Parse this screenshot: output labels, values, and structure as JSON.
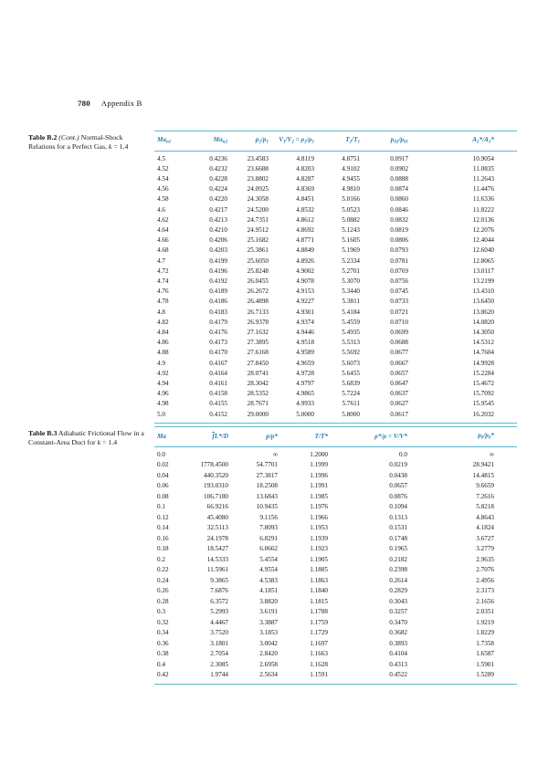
{
  "page": {
    "number": "780",
    "section": "Appendix B"
  },
  "colors": {
    "header_text": "#1f7da8",
    "rule": "#5ab8d0",
    "body_text": "#161616",
    "background": "#ffffff"
  },
  "tableB2": {
    "caption_label": "Table B.2",
    "caption_cont": "(Cont.)",
    "caption_text_html": "Normal-Shock Relations for a Perfect Gas, <i>k</i> = 1.4",
    "headers_html": [
      "Ma<sub>n1</sub>",
      "Ma<sub>n2</sub>",
      "p<sub>2</sub>/p<sub>1</sub>",
      "V<sub>1</sub>/V<sub>2</sub> = ρ<sub>2</sub>/ρ<sub>1</sub>",
      "T<sub>2</sub>/T<sub>1</sub>",
      "p<sub>02</sub>/p<sub>01</sub>",
      "A<sub>2</sub>*/A<sub>1</sub>*"
    ],
    "rows": [
      [
        "4.5",
        "0.4236",
        "23.4583",
        "4.8119",
        "4.8751",
        "0.0917",
        "10.9054"
      ],
      [
        "4.52",
        "0.4232",
        "23.6688",
        "4.8203",
        "4.9102",
        "0.0902",
        "11.0835"
      ],
      [
        "4.54",
        "0.4228",
        "23.8802",
        "4.8287",
        "4.9455",
        "0.0888",
        "11.2643"
      ],
      [
        "4.56",
        "0.4224",
        "24.0925",
        "4.8369",
        "4.9810",
        "0.0874",
        "11.4476"
      ],
      [
        "4.58",
        "0.4220",
        "24.3058",
        "4.8451",
        "5.0166",
        "0.0860",
        "11.6336"
      ],
      [
        "4.6",
        "0.4217",
        "24.5200",
        "4.8532",
        "5.0523",
        "0.0846",
        "11.8222"
      ],
      [
        "4.62",
        "0.4213",
        "24.7351",
        "4.8612",
        "5.0882",
        "0.0832",
        "12.0136"
      ],
      [
        "4.64",
        "0.4210",
        "24.9512",
        "4.8692",
        "5.1243",
        "0.0819",
        "12.2076"
      ],
      [
        "4.66",
        "0.4206",
        "25.1682",
        "4.8771",
        "5.1605",
        "0.0806",
        "12.4044"
      ],
      [
        "4.68",
        "0.4203",
        "25.3861",
        "4.8849",
        "5.1969",
        "0.0793",
        "12.6040"
      ],
      [
        "4.7",
        "0.4199",
        "25.6050",
        "4.8926",
        "5.2334",
        "0.0781",
        "12.8065"
      ],
      [
        "4.72",
        "0.4196",
        "25.8248",
        "4.9002",
        "5.2701",
        "0.0769",
        "13.0117"
      ],
      [
        "4.74",
        "0.4192",
        "26.0455",
        "4.9078",
        "5.3070",
        "0.0756",
        "13.2199"
      ],
      [
        "4.76",
        "0.4189",
        "26.2672",
        "4.9153",
        "5.3440",
        "0.0745",
        "13.4310"
      ],
      [
        "4.78",
        "0.4186",
        "26.4898",
        "4.9227",
        "5.3811",
        "0.0733",
        "13.6450"
      ],
      [
        "4.8",
        "0.4183",
        "26.7133",
        "4.9301",
        "5.4184",
        "0.0721",
        "13.8620"
      ],
      [
        "4.82",
        "0.4179",
        "26.9378",
        "4.9374",
        "5.4559",
        "0.0710",
        "14.0820"
      ],
      [
        "4.84",
        "0.4176",
        "27.1632",
        "4.9446",
        "5.4935",
        "0.0699",
        "14.3050"
      ],
      [
        "4.86",
        "0.4173",
        "27.3895",
        "4.9518",
        "5.5313",
        "0.0688",
        "14.5312"
      ],
      [
        "4.88",
        "0.4170",
        "27.6168",
        "4.9589",
        "5.5692",
        "0.0677",
        "14.7604"
      ],
      [
        "4.9",
        "0.4167",
        "27.8450",
        "4.9659",
        "5.6073",
        "0.0667",
        "14.9928"
      ],
      [
        "4.92",
        "0.4164",
        "28.0741",
        "4.9728",
        "5.6455",
        "0.0657",
        "15.2284"
      ],
      [
        "4.94",
        "0.4161",
        "28.3042",
        "4.9797",
        "5.6839",
        "0.0647",
        "15.4672"
      ],
      [
        "4.96",
        "0.4158",
        "28.5352",
        "4.9865",
        "5.7224",
        "0.0637",
        "15.7092"
      ],
      [
        "4.98",
        "0.4155",
        "28.7671",
        "4.9933",
        "5.7611",
        "0.0627",
        "15.9545"
      ],
      [
        "5.0",
        "0.4152",
        "29.0000",
        "5.0000",
        "5.8000",
        "0.0617",
        "16.2032"
      ]
    ]
  },
  "tableB3": {
    "caption_label": "Table B.3",
    "caption_text_html": "Adiabatic Frictional Flow in a Constant-Area Duct for <i>k</i> = 1.4",
    "headers_html": [
      "Ma",
      "<span class='ov'>f</span>L*/D",
      "p/p*",
      "T/T*",
      "ρ*/ρ = V/V*",
      "p<sub>0</sub>/p<sub>0</sub>*"
    ],
    "rows": [
      [
        "0.0",
        "",
        "∞",
        "1.2000",
        "0.0",
        "∞"
      ],
      [
        "0.02",
        "1778.4500",
        "54.7701",
        "1.1999",
        "0.0219",
        "28.9421"
      ],
      [
        "0.04",
        "440.3520",
        "27.3817",
        "1.1996",
        "0.0438",
        "14.4815"
      ],
      [
        "0.06",
        "193.0310",
        "18.2508",
        "1.1991",
        "0.0657",
        "9.6659"
      ],
      [
        "0.08",
        "106.7180",
        "13.6843",
        "1.1985",
        "0.0876",
        "7.2616"
      ],
      [
        "0.1",
        "66.9216",
        "10.9435",
        "1.1976",
        "0.1094",
        "5.8218"
      ],
      [
        "0.12",
        "45.4080",
        "9.1156",
        "1.1966",
        "0.1313",
        "4.8643"
      ],
      [
        "0.14",
        "32.5113",
        "7.8093",
        "1.1953",
        "0.1531",
        "4.1824"
      ],
      [
        "0.16",
        "24.1978",
        "6.8291",
        "1.1939",
        "0.1748",
        "3.6727"
      ],
      [
        "0.18",
        "18.5427",
        "6.0662",
        "1.1923",
        "0.1965",
        "3.2779"
      ],
      [
        "0.2",
        "14.5333",
        "5.4554",
        "1.1905",
        "0.2182",
        "2.9635"
      ],
      [
        "0.22",
        "11.5961",
        "4.9554",
        "1.1885",
        "0.2398",
        "2.7076"
      ],
      [
        "0.24",
        "9.3865",
        "4.5383",
        "1.1863",
        "0.2614",
        "2.4956"
      ],
      [
        "0.26",
        "7.6876",
        "4.1851",
        "1.1840",
        "0.2829",
        "2.3173"
      ],
      [
        "0.28",
        "6.3572",
        "3.8820",
        "1.1815",
        "0.3043",
        "2.1656"
      ],
      [
        "0.3",
        "5.2993",
        "3.6191",
        "1.1788",
        "0.3257",
        "2.0351"
      ],
      [
        "0.32",
        "4.4467",
        "3.3887",
        "1.1759",
        "0.3470",
        "1.9219"
      ],
      [
        "0.34",
        "3.7520",
        "3.1853",
        "1.1729",
        "0.3682",
        "1.8229"
      ],
      [
        "0.36",
        "3.1801",
        "3.0042",
        "1.1697",
        "0.3893",
        "1.7358"
      ],
      [
        "0.38",
        "2.7054",
        "2.8420",
        "1.1663",
        "0.4104",
        "1.6587"
      ],
      [
        "0.4",
        "2.3085",
        "2.6958",
        "1.1628",
        "0.4313",
        "1.5901"
      ],
      [
        "0.42",
        "1.9744",
        "2.5634",
        "1.1591",
        "0.4522",
        "1.5289"
      ]
    ]
  }
}
